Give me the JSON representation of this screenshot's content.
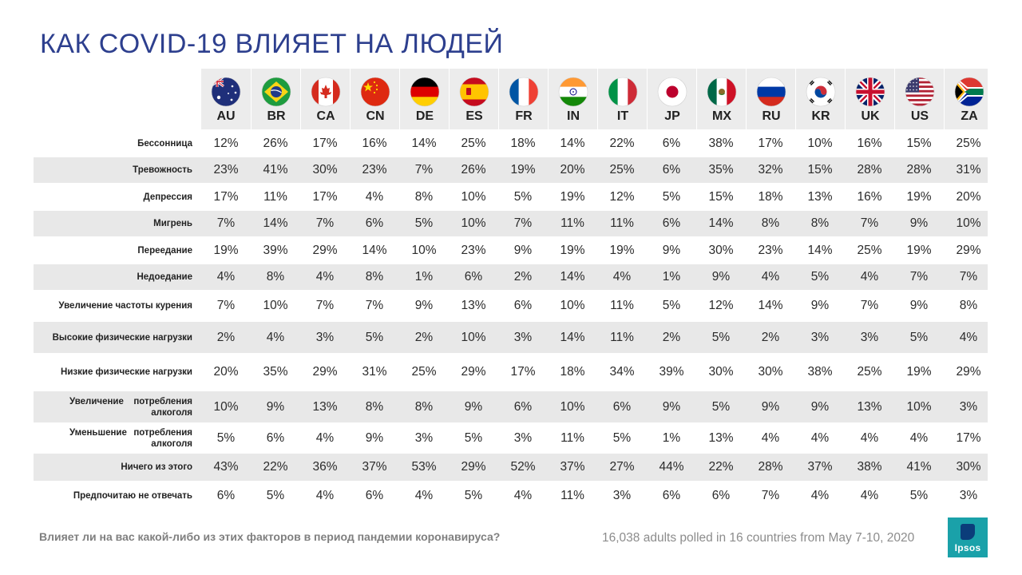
{
  "title": "КАК COVID-19 ВЛИЯЕТ НА ЛЮДЕЙ",
  "question": "Влияет ли на вас какой-либо из этих факторов в период пандемии коронавируса?",
  "source": "16,038 adults polled in 16 countries from May 7-10, 2020",
  "logo_text": "Ipsos",
  "colors": {
    "title": "#2d3f8e",
    "band": "#e8e8e8",
    "logo": "#1aa1a9"
  },
  "flag_icons": [
    "flag-au-icon",
    "flag-br-icon",
    "flag-ca-icon",
    "flag-cn-icon",
    "flag-de-icon",
    "flag-es-icon",
    "flag-fr-icon",
    "flag-in-icon",
    "flag-it-icon",
    "flag-jp-icon",
    "flag-mx-icon",
    "flag-ru-icon",
    "flag-kr-icon",
    "flag-uk-icon",
    "flag-us-icon",
    "flag-za-icon"
  ],
  "chart_data": {
    "type": "table",
    "categories": [
      "AU",
      "BR",
      "CA",
      "CN",
      "DE",
      "ES",
      "FR",
      "IN",
      "IT",
      "JP",
      "MX",
      "RU",
      "KR",
      "UK",
      "US",
      "ZA"
    ],
    "rows": [
      {
        "label": "Бессонница",
        "values": [
          "12%",
          "26%",
          "17%",
          "16%",
          "14%",
          "25%",
          "18%",
          "14%",
          "22%",
          "6%",
          "38%",
          "17%",
          "10%",
          "16%",
          "15%",
          "25%"
        ]
      },
      {
        "label": "Тревожность",
        "values": [
          "23%",
          "41%",
          "30%",
          "23%",
          "7%",
          "26%",
          "19%",
          "20%",
          "25%",
          "6%",
          "35%",
          "32%",
          "15%",
          "28%",
          "28%",
          "31%"
        ]
      },
      {
        "label": "Депрессия",
        "values": [
          "17%",
          "11%",
          "17%",
          "4%",
          "8%",
          "10%",
          "5%",
          "19%",
          "12%",
          "5%",
          "15%",
          "18%",
          "13%",
          "16%",
          "19%",
          "20%"
        ]
      },
      {
        "label": "Мигрень",
        "values": [
          "7%",
          "14%",
          "7%",
          "6%",
          "5%",
          "10%",
          "7%",
          "11%",
          "11%",
          "6%",
          "14%",
          "8%",
          "8%",
          "7%",
          "9%",
          "10%"
        ]
      },
      {
        "label": "Переедание",
        "values": [
          "19%",
          "39%",
          "29%",
          "14%",
          "10%",
          "23%",
          "9%",
          "19%",
          "19%",
          "9%",
          "30%",
          "23%",
          "14%",
          "25%",
          "19%",
          "29%"
        ]
      },
      {
        "label": "Недоедание",
        "values": [
          "4%",
          "8%",
          "4%",
          "8%",
          "1%",
          "6%",
          "2%",
          "14%",
          "4%",
          "1%",
          "9%",
          "4%",
          "5%",
          "4%",
          "7%",
          "7%"
        ]
      },
      {
        "label": "Увеличение частоты курения",
        "values": [
          "7%",
          "10%",
          "7%",
          "7%",
          "9%",
          "13%",
          "6%",
          "10%",
          "11%",
          "5%",
          "12%",
          "14%",
          "9%",
          "7%",
          "9%",
          "8%"
        ]
      },
      {
        "label": "Высокие физические нагрузки",
        "values": [
          "2%",
          "4%",
          "3%",
          "5%",
          "2%",
          "10%",
          "3%",
          "14%",
          "11%",
          "2%",
          "5%",
          "2%",
          "3%",
          "3%",
          "5%",
          "4%"
        ]
      },
      {
        "label": "Низкие физические нагрузки",
        "values": [
          "20%",
          "35%",
          "29%",
          "31%",
          "25%",
          "29%",
          "17%",
          "18%",
          "34%",
          "39%",
          "30%",
          "30%",
          "38%",
          "25%",
          "19%",
          "29%"
        ]
      },
      {
        "label": "Увеличение потребления алкоголя",
        "values": [
          "10%",
          "9%",
          "13%",
          "8%",
          "8%",
          "9%",
          "6%",
          "10%",
          "6%",
          "9%",
          "5%",
          "9%",
          "9%",
          "13%",
          "10%",
          "3%"
        ]
      },
      {
        "label": "Уменьшение потребления алкоголя",
        "values": [
          "5%",
          "6%",
          "4%",
          "9%",
          "3%",
          "5%",
          "3%",
          "11%",
          "5%",
          "1%",
          "13%",
          "4%",
          "4%",
          "4%",
          "4%",
          "17%"
        ]
      },
      {
        "label": "Ничего из этого",
        "values": [
          "43%",
          "22%",
          "36%",
          "37%",
          "53%",
          "29%",
          "52%",
          "37%",
          "27%",
          "44%",
          "22%",
          "28%",
          "37%",
          "38%",
          "41%",
          "30%"
        ]
      },
      {
        "label": "Предпочитаю не отвечать",
        "values": [
          "6%",
          "5%",
          "4%",
          "6%",
          "4%",
          "5%",
          "4%",
          "11%",
          "3%",
          "6%",
          "6%",
          "7%",
          "4%",
          "4%",
          "5%",
          "3%"
        ]
      }
    ]
  }
}
